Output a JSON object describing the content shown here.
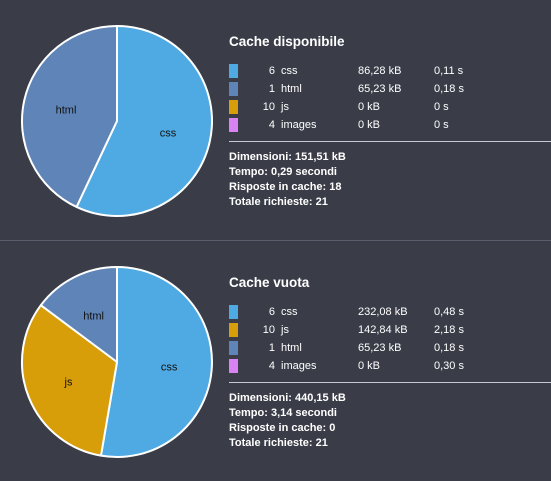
{
  "chart_data": [
    {
      "type": "pie",
      "title": "Cache disponibile",
      "slices": [
        {
          "label": "css",
          "count": 6,
          "type": "css",
          "size": "86,28 kB",
          "time": "0,11 s",
          "color": "#4fa9e2",
          "fraction": 0.57
        },
        {
          "label": "html",
          "count": 1,
          "type": "html",
          "size": "65,23 kB",
          "time": "0,18 s",
          "color": "#5f85b8",
          "fraction": 0.43
        },
        {
          "label": "",
          "count": 10,
          "type": "js",
          "size": "0 kB",
          "time": "0 s",
          "color": "#d79e0a",
          "fraction": 0
        },
        {
          "label": "",
          "count": 4,
          "type": "images",
          "size": "0 kB",
          "time": "0 s",
          "color": "#d883f1",
          "fraction": 0
        }
      ],
      "stats": [
        "Dimensioni: 151,51 kB",
        "Tempo: 0,29 secondi",
        "Risposte in cache: 18",
        "Totale richieste: 21"
      ]
    },
    {
      "type": "pie",
      "title": "Cache vuota",
      "slices": [
        {
          "label": "css",
          "count": 6,
          "type": "css",
          "size": "232,08 kB",
          "time": "0,48 s",
          "color": "#4fa9e2",
          "fraction": 0.527
        },
        {
          "label": "js",
          "count": 10,
          "type": "js",
          "size": "142,84 kB",
          "time": "2,18 s",
          "color": "#d79e0a",
          "fraction": 0.325
        },
        {
          "label": "html",
          "count": 1,
          "type": "html",
          "size": "65,23 kB",
          "time": "0,18 s",
          "color": "#5f85b8",
          "fraction": 0.148
        },
        {
          "label": "",
          "count": 4,
          "type": "images",
          "size": "0 kB",
          "time": "0,30 s",
          "color": "#d883f1",
          "fraction": 0
        }
      ],
      "stats": [
        "Dimensioni: 440,15 kB",
        "Tempo: 3,14 secondi",
        "Risposte in cache: 0",
        "Totale richieste: 21"
      ]
    }
  ]
}
